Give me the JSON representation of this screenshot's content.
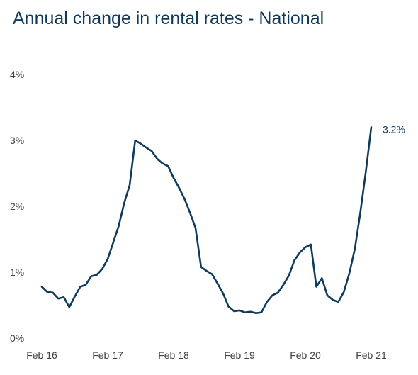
{
  "chart_data": {
    "type": "line",
    "title": "Annual change in rental rates - National",
    "xlabel": "",
    "ylabel": "",
    "ylim": [
      0,
      4
    ],
    "yticks": [
      "0%",
      "1%",
      "2%",
      "3%",
      "4%"
    ],
    "xticks": [
      "Feb 16",
      "Feb 17",
      "Feb 18",
      "Feb 19",
      "Feb 20",
      "Feb 21"
    ],
    "grid": false,
    "legend": "none",
    "color": "#0e3a5b",
    "annotation": "3.2%",
    "series": [
      {
        "values": [
          0.78,
          0.7,
          0.69,
          0.6,
          0.62,
          0.47,
          0.63,
          0.78,
          0.81,
          0.94,
          0.96,
          1.05,
          1.2,
          1.45,
          1.7,
          2.05,
          2.32,
          3.0,
          2.95,
          2.89,
          2.84,
          2.72,
          2.65,
          2.61,
          2.43,
          2.28,
          2.11,
          1.9,
          1.67,
          1.08,
          1.02,
          0.97,
          0.83,
          0.68,
          0.48,
          0.41,
          0.42,
          0.39,
          0.4,
          0.38,
          0.39,
          0.55,
          0.65,
          0.69,
          0.81,
          0.95,
          1.18,
          1.3,
          1.38,
          1.42,
          0.78,
          0.91,
          0.65,
          0.58,
          0.55,
          0.7,
          0.98,
          1.35,
          1.9,
          2.52,
          3.2
        ]
      }
    ]
  }
}
